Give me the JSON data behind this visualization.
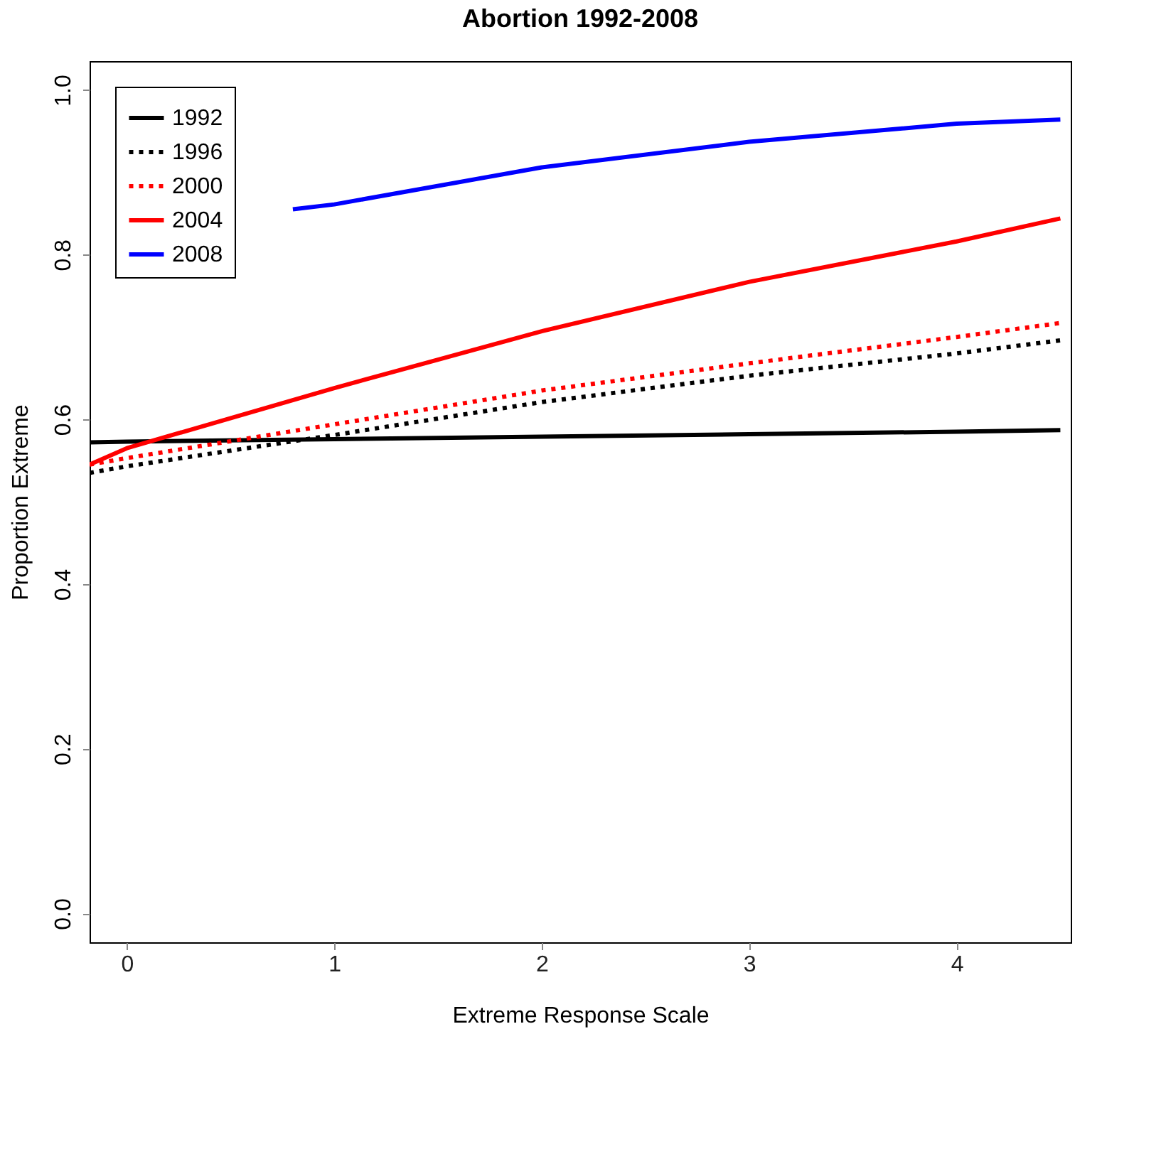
{
  "chart_data": {
    "type": "line",
    "title": "Abortion 1992-2008",
    "xlabel": "Extreme Response Scale",
    "ylabel": "Proportion Extreme",
    "xlim": [
      -0.18,
      4.55
    ],
    "ylim": [
      -0.035,
      1.035
    ],
    "xticks": [
      0,
      1,
      2,
      3,
      4
    ],
    "yticks": [
      {
        "value": 0,
        "label": "0.0"
      },
      0.2,
      0.4,
      0.6,
      0.8,
      {
        "value": 1,
        "label": "1.0"
      }
    ],
    "legend": "top left",
    "grid": false,
    "series": [
      {
        "name": "1992",
        "color": "#000000",
        "line_style": "solid",
        "x": [
          -0.18,
          0,
          1,
          2,
          3,
          4,
          4.5
        ],
        "values": [
          0.572,
          0.573,
          0.576,
          0.579,
          0.582,
          0.585,
          0.587
        ]
      },
      {
        "name": "1996",
        "color": "#000000",
        "line_style": "dotted",
        "x": [
          -0.18,
          0,
          1,
          2,
          3,
          4,
          4.5
        ],
        "values": [
          0.535,
          0.543,
          0.581,
          0.621,
          0.653,
          0.68,
          0.696
        ]
      },
      {
        "name": "2000",
        "color": "#ff0000",
        "line_style": "dotted",
        "x": [
          -0.18,
          0,
          1,
          2,
          3,
          4,
          4.5
        ],
        "values": [
          0.545,
          0.553,
          0.594,
          0.635,
          0.668,
          0.7,
          0.717
        ]
      },
      {
        "name": "2004",
        "color": "#ff0000",
        "line_style": "solid",
        "x": [
          -0.18,
          0,
          1,
          2,
          3,
          4,
          4.5
        ],
        "values": [
          0.545,
          0.565,
          0.638,
          0.707,
          0.767,
          0.816,
          0.844
        ]
      },
      {
        "name": "2008",
        "color": "#0000ff",
        "line_style": "solid",
        "x": [
          0.8,
          1,
          2,
          3,
          4,
          4.5
        ],
        "values": [
          0.855,
          0.861,
          0.906,
          0.937,
          0.959,
          0.964
        ]
      }
    ]
  }
}
